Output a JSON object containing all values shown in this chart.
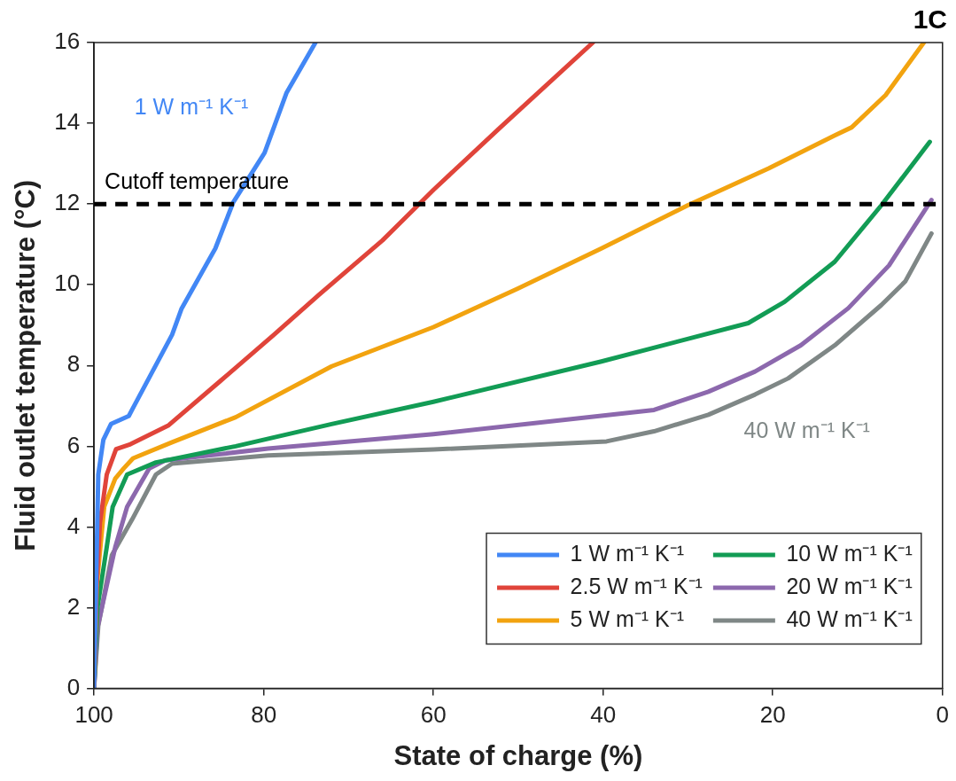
{
  "chart_data": {
    "type": "line",
    "title": "1C",
    "xlabel": "State of charge (%)",
    "ylabel": "Fluid outlet temperature (°C)",
    "xlim": [
      100,
      0
    ],
    "xticks": [
      100,
      80,
      60,
      40,
      20,
      0
    ],
    "ylim": [
      0,
      16
    ],
    "yticks": [
      0,
      2,
      4,
      6,
      8,
      10,
      12,
      14,
      16
    ],
    "grid": false,
    "legend": "bottom right",
    "marker": "none",
    "line_style": "solid",
    "ref_lines": [
      {
        "axis": "y",
        "value": 12,
        "label": "Cutoff temperature",
        "color": "#000000",
        "line_style": "dashed"
      }
    ],
    "annotations": [
      "1 W m⁻¹ K⁻¹",
      "40 W m⁻¹ K⁻¹"
    ],
    "series": [
      {
        "name": "1 W m⁻¹ K⁻¹",
        "color": "#4287f5",
        "x": [
          100,
          99.5,
          98.9,
          98,
          95.9,
          95.4,
          90.8,
          89.7,
          85.7,
          83.6,
          79.9,
          77.3,
          73.9
        ],
        "values": [
          0,
          5.3,
          6.16,
          6.55,
          6.75,
          6.95,
          8.76,
          9.4,
          10.9,
          12.04,
          13.27,
          14.76,
          16
        ]
      },
      {
        "name": "2.5 W m⁻¹ K⁻¹",
        "color": "#e0443a",
        "x": [
          100,
          99.7,
          99.3,
          98.5,
          97.4,
          95.7,
          91.2,
          85.2,
          78.8,
          73.5,
          66,
          60,
          52.1,
          41.2
        ],
        "values": [
          0,
          2.5,
          4.1,
          5.3,
          5.93,
          6.05,
          6.52,
          7.6,
          8.76,
          9.75,
          11.1,
          12.35,
          13.9,
          16
        ]
      },
      {
        "name": "5 W m⁻¹ K⁻¹",
        "color": "#f2a30f",
        "x": [
          100,
          99.7,
          98.8,
          97.5,
          96.5,
          95.4,
          90.8,
          83.3,
          72,
          60,
          50.1,
          40.2,
          30,
          20.5,
          12.7,
          10.7,
          6.7,
          2.2
        ],
        "values": [
          0,
          2.5,
          4.5,
          5.2,
          5.45,
          5.7,
          6.1,
          6.72,
          7.98,
          8.95,
          9.9,
          10.9,
          11.97,
          12.88,
          13.7,
          13.9,
          14.7,
          16
        ]
      },
      {
        "name": "10 W m⁻¹ K⁻¹",
        "color": "#129c55",
        "x": [
          100,
          99.6,
          98.5,
          97.8,
          96.1,
          92.7,
          83.3,
          72,
          60,
          40.2,
          22.9,
          18.6,
          12.7,
          7.2,
          1.5
        ],
        "values": [
          0,
          2,
          3.5,
          4.5,
          5.3,
          5.6,
          6,
          6.55,
          7.1,
          8.1,
          9.05,
          9.58,
          10.57,
          11.97,
          13.54
        ]
      },
      {
        "name": "20 W m⁻¹ K⁻¹",
        "color": "#8c68ad",
        "x": [
          100,
          99.6,
          97.5,
          96.1,
          93.5,
          91.6,
          79.5,
          60,
          34,
          27.6,
          22.1,
          16.7,
          11.1,
          6.3,
          1.3
        ],
        "values": [
          0,
          1.5,
          3.5,
          4.5,
          5.45,
          5.65,
          5.94,
          6.3,
          6.9,
          7.35,
          7.85,
          8.5,
          9.42,
          10.48,
          12.1
        ]
      },
      {
        "name": "40 W m⁻¹ K⁻¹",
        "color": "#7f8786",
        "x": [
          100,
          99.5,
          97.9,
          95.5,
          92.7,
          90.8,
          79.5,
          60,
          39.6,
          34,
          27.6,
          22.1,
          18.2,
          12.7,
          7.2,
          4.4,
          1.3
        ],
        "values": [
          0,
          1.55,
          3.3,
          4.19,
          5.3,
          5.57,
          5.77,
          5.92,
          6.12,
          6.37,
          6.78,
          7.28,
          7.68,
          8.5,
          9.5,
          10.08,
          11.27
        ]
      }
    ]
  }
}
